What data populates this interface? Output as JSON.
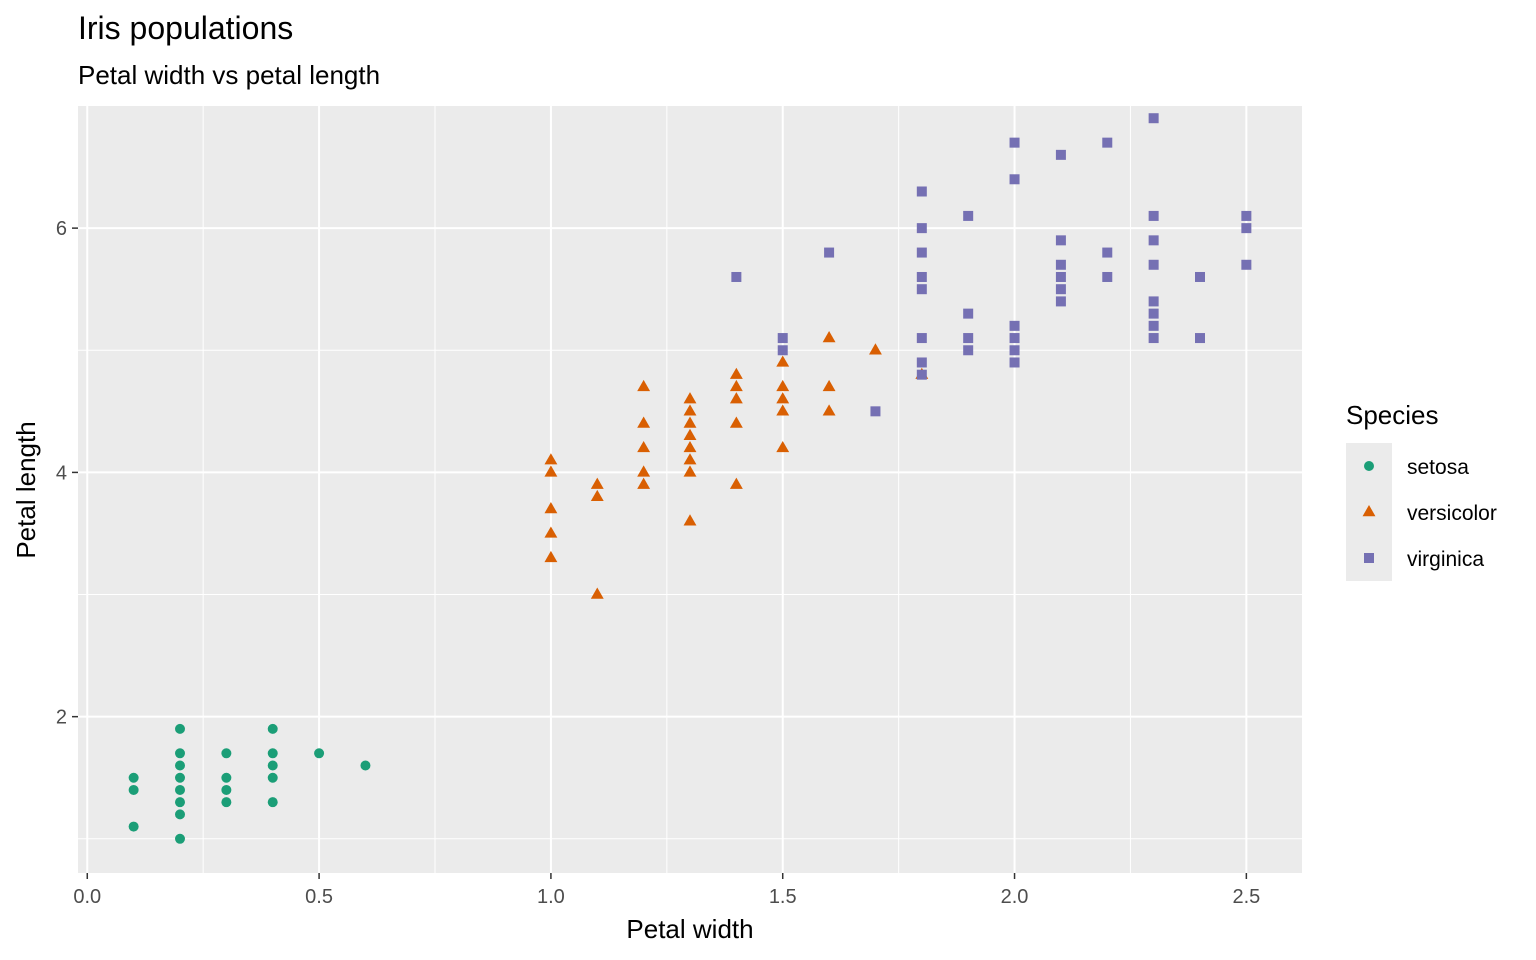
{
  "colors": {
    "panel": "#ebebeb",
    "grid": "#ffffff",
    "setosa": "#1b9e77",
    "versicolor": "#d95f02",
    "virginica": "#7570b3"
  },
  "chart_data": {
    "type": "scatter",
    "title": "Iris populations",
    "subtitle": "Petal width vs petal length",
    "xlabel": "Petal width",
    "ylabel": "Petal length",
    "xlim": [
      -0.02,
      2.62
    ],
    "ylim": [
      0.72,
      7.0
    ],
    "x_ticks": [
      0.0,
      0.5,
      1.0,
      1.5,
      2.0,
      2.5
    ],
    "x_tick_labels": [
      "0.0",
      "0.5",
      "1.0",
      "1.5",
      "2.0",
      "2.5"
    ],
    "y_ticks": [
      2,
      4,
      6
    ],
    "y_tick_labels": [
      "2",
      "4",
      "6"
    ],
    "grid": true,
    "legend": {
      "title": "Species",
      "position": "right"
    },
    "series": [
      {
        "name": "setosa",
        "shape": "circle",
        "points": [
          [
            0.1,
            1.1
          ],
          [
            0.1,
            1.4
          ],
          [
            0.1,
            1.5
          ],
          [
            0.2,
            1.0
          ],
          [
            0.2,
            1.2
          ],
          [
            0.2,
            1.3
          ],
          [
            0.2,
            1.4
          ],
          [
            0.2,
            1.5
          ],
          [
            0.2,
            1.6
          ],
          [
            0.2,
            1.7
          ],
          [
            0.2,
            1.9
          ],
          [
            0.3,
            1.3
          ],
          [
            0.3,
            1.4
          ],
          [
            0.3,
            1.5
          ],
          [
            0.3,
            1.7
          ],
          [
            0.4,
            1.3
          ],
          [
            0.4,
            1.5
          ],
          [
            0.4,
            1.6
          ],
          [
            0.4,
            1.7
          ],
          [
            0.4,
            1.9
          ],
          [
            0.5,
            1.7
          ],
          [
            0.6,
            1.6
          ]
        ]
      },
      {
        "name": "versicolor",
        "shape": "triangle",
        "points": [
          [
            1.0,
            3.3
          ],
          [
            1.0,
            3.5
          ],
          [
            1.0,
            3.7
          ],
          [
            1.0,
            4.0
          ],
          [
            1.0,
            4.1
          ],
          [
            1.1,
            3.0
          ],
          [
            1.1,
            3.8
          ],
          [
            1.1,
            3.9
          ],
          [
            1.2,
            3.9
          ],
          [
            1.2,
            4.0
          ],
          [
            1.2,
            4.2
          ],
          [
            1.2,
            4.4
          ],
          [
            1.2,
            4.7
          ],
          [
            1.3,
            3.6
          ],
          [
            1.3,
            4.0
          ],
          [
            1.3,
            4.1
          ],
          [
            1.3,
            4.2
          ],
          [
            1.3,
            4.3
          ],
          [
            1.3,
            4.4
          ],
          [
            1.3,
            4.5
          ],
          [
            1.3,
            4.6
          ],
          [
            1.4,
            3.9
          ],
          [
            1.4,
            4.4
          ],
          [
            1.4,
            4.6
          ],
          [
            1.4,
            4.7
          ],
          [
            1.4,
            4.8
          ],
          [
            1.5,
            4.2
          ],
          [
            1.5,
            4.5
          ],
          [
            1.5,
            4.6
          ],
          [
            1.5,
            4.7
          ],
          [
            1.5,
            4.9
          ],
          [
            1.6,
            4.5
          ],
          [
            1.6,
            4.7
          ],
          [
            1.6,
            5.1
          ],
          [
            1.7,
            5.0
          ],
          [
            1.8,
            4.8
          ]
        ]
      },
      {
        "name": "virginica",
        "shape": "square",
        "points": [
          [
            1.4,
            5.6
          ],
          [
            1.5,
            5.0
          ],
          [
            1.5,
            5.1
          ],
          [
            1.6,
            5.8
          ],
          [
            1.7,
            4.5
          ],
          [
            1.8,
            4.8
          ],
          [
            1.8,
            4.9
          ],
          [
            1.8,
            5.1
          ],
          [
            1.8,
            5.5
          ],
          [
            1.8,
            5.6
          ],
          [
            1.8,
            5.8
          ],
          [
            1.8,
            6.0
          ],
          [
            1.8,
            6.3
          ],
          [
            1.9,
            5.0
          ],
          [
            1.9,
            5.1
          ],
          [
            1.9,
            5.3
          ],
          [
            1.9,
            6.1
          ],
          [
            2.0,
            4.9
          ],
          [
            2.0,
            5.0
          ],
          [
            2.0,
            5.1
          ],
          [
            2.0,
            5.2
          ],
          [
            2.0,
            6.4
          ],
          [
            2.0,
            6.7
          ],
          [
            2.1,
            5.4
          ],
          [
            2.1,
            5.5
          ],
          [
            2.1,
            5.6
          ],
          [
            2.1,
            5.7
          ],
          [
            2.1,
            5.9
          ],
          [
            2.1,
            6.6
          ],
          [
            2.2,
            5.6
          ],
          [
            2.2,
            5.8
          ],
          [
            2.2,
            6.7
          ],
          [
            2.3,
            5.1
          ],
          [
            2.3,
            5.2
          ],
          [
            2.3,
            5.3
          ],
          [
            2.3,
            5.4
          ],
          [
            2.3,
            5.7
          ],
          [
            2.3,
            5.9
          ],
          [
            2.3,
            6.1
          ],
          [
            2.3,
            6.9
          ],
          [
            2.4,
            5.1
          ],
          [
            2.4,
            5.6
          ],
          [
            2.5,
            5.7
          ],
          [
            2.5,
            6.0
          ],
          [
            2.5,
            6.1
          ]
        ]
      }
    ]
  }
}
